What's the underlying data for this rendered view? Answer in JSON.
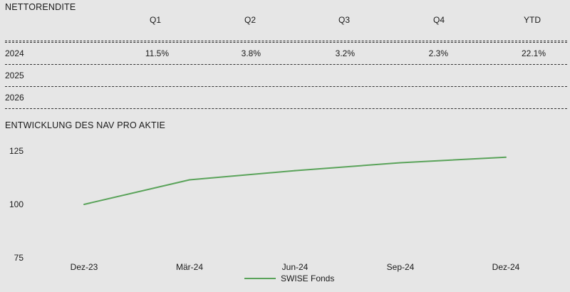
{
  "returns_table": {
    "title": "NETTORENDITE",
    "columns": [
      "Q1",
      "Q2",
      "Q3",
      "Q4",
      "YTD"
    ],
    "rows": [
      {
        "year": "2024",
        "values": [
          "11.5%",
          "3.8%",
          "3.2%",
          "2.3%",
          "22.1%"
        ]
      },
      {
        "year": "2025",
        "values": [
          "",
          "",
          "",
          "",
          ""
        ]
      },
      {
        "year": "2026",
        "values": [
          "",
          "",
          "",
          "",
          ""
        ]
      }
    ]
  },
  "nav_section": {
    "title": "ENTWICKLUNG DES NAV PRO AKTIE"
  },
  "chart_data": {
    "type": "line",
    "categories": [
      "Dez-23",
      "Mär-24",
      "Jun-24",
      "Sep-24",
      "Dez-24"
    ],
    "series": [
      {
        "name": "SWISE Fonds",
        "values": [
          100,
          111.5,
          115.8,
          119.5,
          122.1
        ],
        "color": "#5aa35a"
      }
    ],
    "ylim": [
      75,
      125
    ],
    "yticks": [
      75,
      100,
      125
    ],
    "xlabel": "",
    "ylabel": "",
    "legend_position": "bottom-center",
    "grid": false
  }
}
